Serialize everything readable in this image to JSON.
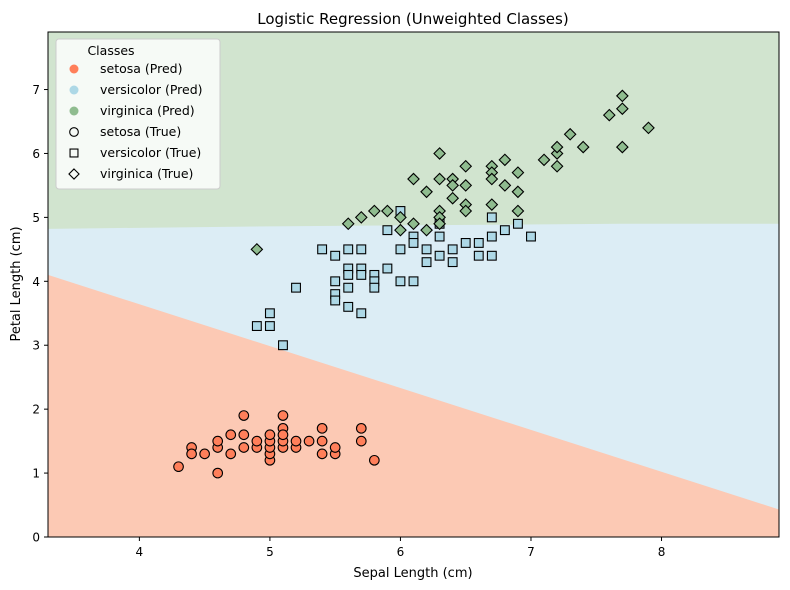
{
  "chart_data": {
    "type": "scatter",
    "title": "Logistic Regression (Unweighted Classes)",
    "xlabel": "Sepal Length (cm)",
    "ylabel": "Petal Length (cm)",
    "xlim": [
      3.3,
      8.9
    ],
    "ylim": [
      0,
      7.9
    ],
    "xticks": [
      4,
      5,
      6,
      7,
      8
    ],
    "yticks": [
      0,
      1,
      2,
      3,
      4,
      5,
      6,
      7
    ],
    "grid": false,
    "legend": {
      "title": "Classes",
      "placement": "top-left",
      "entries": [
        {
          "label": "setosa (Pred)",
          "marker": "filled-circle",
          "color": "#ff7f5a"
        },
        {
          "label": "versicolor (Pred)",
          "marker": "filled-circle",
          "color": "#add8e6"
        },
        {
          "label": "virginica (Pred)",
          "marker": "filled-circle",
          "color": "#8fbc8f"
        },
        {
          "label": "setosa (True)",
          "marker": "circle"
        },
        {
          "label": "versicolor (True)",
          "marker": "square"
        },
        {
          "label": "virginica (True)",
          "marker": "diamond"
        }
      ]
    },
    "regions": [
      {
        "class": "setosa",
        "color": "#fcc9b4"
      },
      {
        "class": "versicolor",
        "color": "#dcedf5"
      },
      {
        "class": "virginica",
        "color": "#d1e4cf"
      }
    ],
    "boundaries": {
      "setosa_versicolor": [
        [
          3.3,
          4.1
        ],
        [
          8.9,
          0.43
        ]
      ],
      "versicolor_virginica": [
        [
          3.3,
          4.82
        ],
        [
          3.7,
          4.83
        ],
        [
          5.0,
          4.86
        ],
        [
          7.7,
          4.9
        ],
        [
          8.9,
          4.9
        ]
      ]
    },
    "class_colors": {
      "setosa": "#ff7f5a",
      "versicolor": "#add8e6",
      "virginica": "#8fbc8f"
    },
    "class_markers": {
      "setosa": "circle",
      "versicolor": "square",
      "virginica": "diamond"
    },
    "series": [
      {
        "name": "setosa",
        "points": [
          [
            4.3,
            1.1
          ],
          [
            4.4,
            1.4
          ],
          [
            4.4,
            1.3
          ],
          [
            4.5,
            1.3
          ],
          [
            4.6,
            1.0
          ],
          [
            4.6,
            1.4
          ],
          [
            4.6,
            1.5
          ],
          [
            4.7,
            1.3
          ],
          [
            4.7,
            1.6
          ],
          [
            4.8,
            1.4
          ],
          [
            4.8,
            1.6
          ],
          [
            4.8,
            1.9
          ],
          [
            4.9,
            1.4
          ],
          [
            4.9,
            1.5
          ],
          [
            5.0,
            1.2
          ],
          [
            5.0,
            1.3
          ],
          [
            5.0,
            1.4
          ],
          [
            5.0,
            1.5
          ],
          [
            5.0,
            1.6
          ],
          [
            5.1,
            1.4
          ],
          [
            5.1,
            1.5
          ],
          [
            5.1,
            1.7
          ],
          [
            5.1,
            1.9
          ],
          [
            5.1,
            1.6
          ],
          [
            5.2,
            1.4
          ],
          [
            5.2,
            1.5
          ],
          [
            5.3,
            1.5
          ],
          [
            5.4,
            1.3
          ],
          [
            5.4,
            1.5
          ],
          [
            5.4,
            1.7
          ],
          [
            5.5,
            1.3
          ],
          [
            5.5,
            1.4
          ],
          [
            5.7,
            1.5
          ],
          [
            5.7,
            1.7
          ],
          [
            5.8,
            1.2
          ]
        ]
      },
      {
        "name": "versicolor",
        "points": [
          [
            4.9,
            3.3
          ],
          [
            5.0,
            3.3
          ],
          [
            5.0,
            3.5
          ],
          [
            5.1,
            3.0
          ],
          [
            5.2,
            3.9
          ],
          [
            5.4,
            4.5
          ],
          [
            5.5,
            4.0
          ],
          [
            5.5,
            3.8
          ],
          [
            5.5,
            3.7
          ],
          [
            5.5,
            4.4
          ],
          [
            5.6,
            4.5
          ],
          [
            5.6,
            4.2
          ],
          [
            5.6,
            4.1
          ],
          [
            5.6,
            3.9
          ],
          [
            5.6,
            3.6
          ],
          [
            5.7,
            4.5
          ],
          [
            5.7,
            4.2
          ],
          [
            5.7,
            4.1
          ],
          [
            5.7,
            3.5
          ],
          [
            5.8,
            4.1
          ],
          [
            5.8,
            4.0
          ],
          [
            5.8,
            3.9
          ],
          [
            5.9,
            4.8
          ],
          [
            5.9,
            4.2
          ],
          [
            6.0,
            5.1
          ],
          [
            6.0,
            4.5
          ],
          [
            6.0,
            4.0
          ],
          [
            6.1,
            4.7
          ],
          [
            6.1,
            4.6
          ],
          [
            6.1,
            4.0
          ],
          [
            6.2,
            4.5
          ],
          [
            6.2,
            4.3
          ],
          [
            6.3,
            4.9
          ],
          [
            6.3,
            4.7
          ],
          [
            6.3,
            4.4
          ],
          [
            6.4,
            4.5
          ],
          [
            6.4,
            4.3
          ],
          [
            6.5,
            4.6
          ],
          [
            6.6,
            4.6
          ],
          [
            6.6,
            4.4
          ],
          [
            6.7,
            5.0
          ],
          [
            6.7,
            4.7
          ],
          [
            6.7,
            4.4
          ],
          [
            6.8,
            4.8
          ],
          [
            6.9,
            4.9
          ],
          [
            7.0,
            4.7
          ]
        ]
      },
      {
        "name": "virginica",
        "points": [
          [
            4.9,
            4.5
          ],
          [
            5.6,
            4.9
          ],
          [
            5.7,
            5.0
          ],
          [
            5.8,
            5.1
          ],
          [
            5.9,
            5.1
          ],
          [
            6.0,
            5.0
          ],
          [
            6.0,
            4.8
          ],
          [
            6.1,
            5.6
          ],
          [
            6.1,
            4.9
          ],
          [
            6.2,
            5.4
          ],
          [
            6.2,
            4.8
          ],
          [
            6.3,
            6.0
          ],
          [
            6.3,
            5.6
          ],
          [
            6.3,
            5.1
          ],
          [
            6.3,
            5.0
          ],
          [
            6.3,
            4.9
          ],
          [
            6.4,
            5.6
          ],
          [
            6.4,
            5.5
          ],
          [
            6.4,
            5.3
          ],
          [
            6.5,
            5.8
          ],
          [
            6.5,
            5.5
          ],
          [
            6.5,
            5.2
          ],
          [
            6.5,
            5.1
          ],
          [
            6.7,
            5.8
          ],
          [
            6.7,
            5.7
          ],
          [
            6.7,
            5.6
          ],
          [
            6.7,
            5.2
          ],
          [
            6.8,
            5.9
          ],
          [
            6.8,
            5.5
          ],
          [
            6.9,
            5.7
          ],
          [
            6.9,
            5.4
          ],
          [
            6.9,
            5.1
          ],
          [
            7.1,
            5.9
          ],
          [
            7.2,
            6.0
          ],
          [
            7.2,
            6.1
          ],
          [
            7.2,
            5.8
          ],
          [
            7.3,
            6.3
          ],
          [
            7.4,
            6.1
          ],
          [
            7.6,
            6.6
          ],
          [
            7.7,
            6.9
          ],
          [
            7.7,
            6.7
          ],
          [
            7.7,
            6.1
          ],
          [
            7.9,
            6.4
          ]
        ]
      }
    ]
  }
}
